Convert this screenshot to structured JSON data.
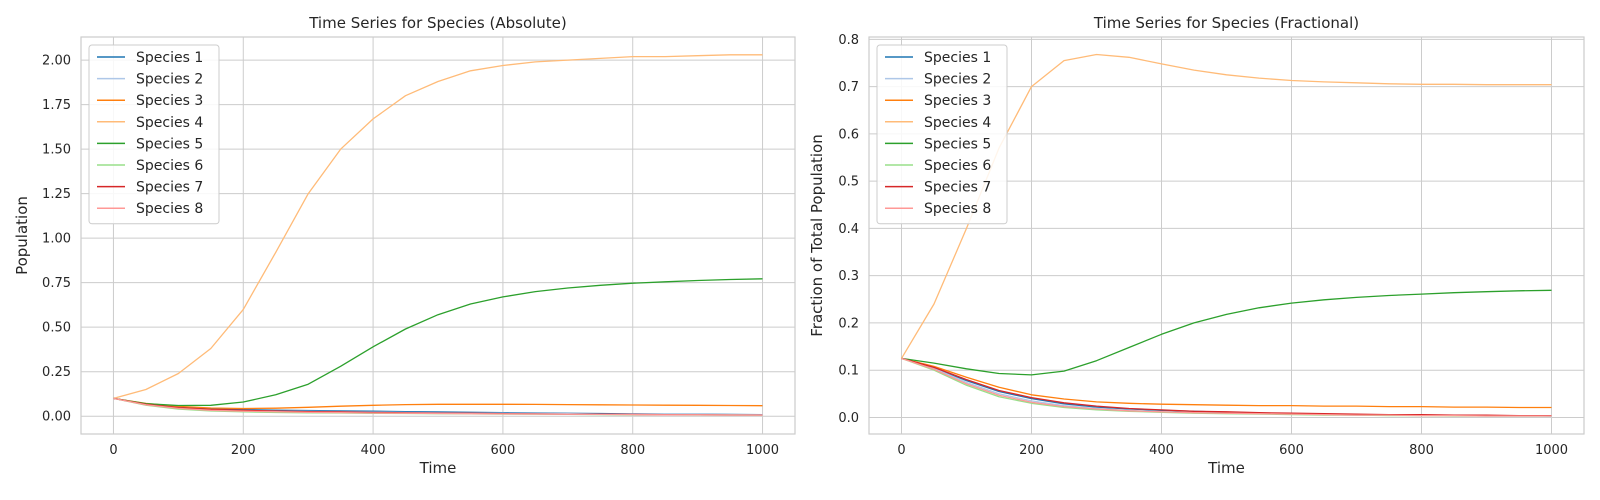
{
  "chart_data": [
    {
      "type": "line",
      "title": "Time Series for Species (Absolute)",
      "xlabel": "Time",
      "ylabel": "Population",
      "xlim": [
        -50,
        1050
      ],
      "ylim": [
        -0.1,
        2.13
      ],
      "xticks": [
        0,
        200,
        400,
        600,
        800,
        1000
      ],
      "xtick_labels": [
        "0",
        "200",
        "400",
        "600",
        "800",
        "1000"
      ],
      "yticks": [
        0,
        0.25,
        0.5,
        0.75,
        1.0,
        1.25,
        1.5,
        1.75,
        2.0
      ],
      "ytick_labels": [
        "0.00",
        "0.25",
        "0.50",
        "0.75",
        "1.00",
        "1.25",
        "1.50",
        "1.75",
        "2.00"
      ],
      "grid": true,
      "legend_position": "upper-left",
      "x": [
        0,
        50,
        100,
        150,
        200,
        250,
        300,
        350,
        400,
        450,
        500,
        550,
        600,
        650,
        700,
        750,
        800,
        850,
        900,
        950,
        1000
      ],
      "series": [
        {
          "name": "Species 1",
          "color": "#1f77b4",
          "values": [
            0.1,
            0.068,
            0.05,
            0.042,
            0.037,
            0.034,
            0.032,
            0.03,
            0.028,
            0.026,
            0.024,
            0.022,
            0.02,
            0.018,
            0.016,
            0.015,
            0.013,
            0.012,
            0.011,
            0.01,
            0.009
          ]
        },
        {
          "name": "Species 2",
          "color": "#aec7e8",
          "values": [
            0.1,
            0.066,
            0.047,
            0.037,
            0.032,
            0.029,
            0.027,
            0.025,
            0.023,
            0.021,
            0.019,
            0.018,
            0.016,
            0.015,
            0.014,
            0.012,
            0.011,
            0.01,
            0.01,
            0.009,
            0.008
          ]
        },
        {
          "name": "Species 3",
          "color": "#ff7f0e",
          "values": [
            0.1,
            0.072,
            0.055,
            0.046,
            0.043,
            0.045,
            0.05,
            0.056,
            0.061,
            0.065,
            0.067,
            0.067,
            0.067,
            0.066,
            0.065,
            0.064,
            0.063,
            0.062,
            0.061,
            0.06,
            0.059
          ]
        },
        {
          "name": "Species 4",
          "color": "#ffbb78",
          "values": [
            0.1,
            0.15,
            0.24,
            0.38,
            0.6,
            0.92,
            1.25,
            1.5,
            1.67,
            1.8,
            1.88,
            1.94,
            1.97,
            1.99,
            2.0,
            2.01,
            2.02,
            2.02,
            2.025,
            2.03,
            2.03
          ]
        },
        {
          "name": "Species 5",
          "color": "#2ca02c",
          "values": [
            0.1,
            0.07,
            0.06,
            0.061,
            0.08,
            0.12,
            0.18,
            0.28,
            0.39,
            0.49,
            0.57,
            0.63,
            0.67,
            0.7,
            0.72,
            0.735,
            0.747,
            0.755,
            0.762,
            0.768,
            0.772
          ]
        },
        {
          "name": "Species 6",
          "color": "#98df8a",
          "values": [
            0.1,
            0.062,
            0.04,
            0.029,
            0.024,
            0.021,
            0.019,
            0.018,
            0.016,
            0.015,
            0.014,
            0.013,
            0.012,
            0.011,
            0.01,
            0.009,
            0.008,
            0.008,
            0.007,
            0.007,
            0.006
          ]
        },
        {
          "name": "Species 7",
          "color": "#d62728",
          "values": [
            0.1,
            0.067,
            0.048,
            0.038,
            0.033,
            0.029,
            0.026,
            0.024,
            0.021,
            0.019,
            0.017,
            0.016,
            0.014,
            0.013,
            0.012,
            0.011,
            0.01,
            0.009,
            0.008,
            0.007,
            0.007
          ]
        },
        {
          "name": "Species 8",
          "color": "#ff9896",
          "values": [
            0.1,
            0.064,
            0.044,
            0.033,
            0.028,
            0.025,
            0.022,
            0.02,
            0.018,
            0.017,
            0.015,
            0.014,
            0.013,
            0.012,
            0.011,
            0.01,
            0.009,
            0.008,
            0.008,
            0.007,
            0.006
          ]
        }
      ]
    },
    {
      "type": "line",
      "title": "Time Series for Species (Fractional)",
      "xlabel": "Time",
      "ylabel": "Fraction of Total Population",
      "xlim": [
        -50,
        1050
      ],
      "ylim": [
        -0.035,
        0.805
      ],
      "xticks": [
        0,
        200,
        400,
        600,
        800,
        1000
      ],
      "xtick_labels": [
        "0",
        "200",
        "400",
        "600",
        "800",
        "1000"
      ],
      "yticks": [
        0,
        0.1,
        0.2,
        0.3,
        0.4,
        0.5,
        0.6,
        0.7,
        0.8
      ],
      "ytick_labels": [
        "0.0",
        "0.1",
        "0.2",
        "0.3",
        "0.4",
        "0.5",
        "0.6",
        "0.7",
        "0.8"
      ],
      "grid": true,
      "legend_position": "upper-left",
      "x": [
        0,
        50,
        100,
        150,
        200,
        250,
        300,
        350,
        400,
        450,
        500,
        550,
        600,
        650,
        700,
        750,
        800,
        850,
        900,
        950,
        1000
      ],
      "series": [
        {
          "name": "Species 1",
          "color": "#1f77b4",
          "values": [
            0.125,
            0.105,
            0.078,
            0.055,
            0.04,
            0.029,
            0.022,
            0.018,
            0.015,
            0.013,
            0.011,
            0.009,
            0.008,
            0.007,
            0.006,
            0.005,
            0.005,
            0.004,
            0.004,
            0.004,
            0.003
          ]
        },
        {
          "name": "Species 2",
          "color": "#aec7e8",
          "values": [
            0.125,
            0.104,
            0.074,
            0.05,
            0.035,
            0.025,
            0.019,
            0.015,
            0.012,
            0.01,
            0.009,
            0.008,
            0.007,
            0.006,
            0.005,
            0.005,
            0.004,
            0.004,
            0.003,
            0.003,
            0.003
          ]
        },
        {
          "name": "Species 3",
          "color": "#ff7f0e",
          "values": [
            0.125,
            0.108,
            0.085,
            0.064,
            0.048,
            0.039,
            0.033,
            0.03,
            0.028,
            0.027,
            0.026,
            0.025,
            0.025,
            0.024,
            0.024,
            0.023,
            0.023,
            0.022,
            0.022,
            0.021,
            0.021
          ]
        },
        {
          "name": "Species 4",
          "color": "#ffbb78",
          "values": [
            0.125,
            0.24,
            0.4,
            0.57,
            0.7,
            0.755,
            0.768,
            0.762,
            0.748,
            0.735,
            0.725,
            0.718,
            0.713,
            0.71,
            0.708,
            0.706,
            0.705,
            0.705,
            0.704,
            0.704,
            0.704
          ]
        },
        {
          "name": "Species 5",
          "color": "#2ca02c",
          "values": [
            0.125,
            0.115,
            0.103,
            0.093,
            0.09,
            0.098,
            0.12,
            0.148,
            0.176,
            0.2,
            0.218,
            0.232,
            0.242,
            0.249,
            0.254,
            0.258,
            0.261,
            0.264,
            0.266,
            0.268,
            0.269
          ]
        },
        {
          "name": "Species 6",
          "color": "#98df8a",
          "values": [
            0.125,
            0.1,
            0.068,
            0.044,
            0.03,
            0.021,
            0.016,
            0.013,
            0.011,
            0.009,
            0.008,
            0.007,
            0.006,
            0.005,
            0.005,
            0.004,
            0.004,
            0.003,
            0.003,
            0.003,
            0.003
          ]
        },
        {
          "name": "Species 7",
          "color": "#d62728",
          "values": [
            0.125,
            0.106,
            0.08,
            0.057,
            0.042,
            0.031,
            0.024,
            0.019,
            0.016,
            0.013,
            0.012,
            0.01,
            0.009,
            0.008,
            0.007,
            0.006,
            0.006,
            0.005,
            0.005,
            0.004,
            0.004
          ]
        },
        {
          "name": "Species 8",
          "color": "#ff9896",
          "values": [
            0.125,
            0.102,
            0.071,
            0.047,
            0.032,
            0.023,
            0.018,
            0.014,
            0.012,
            0.01,
            0.009,
            0.008,
            0.007,
            0.006,
            0.005,
            0.005,
            0.004,
            0.004,
            0.003,
            0.003,
            0.003
          ]
        }
      ]
    }
  ]
}
